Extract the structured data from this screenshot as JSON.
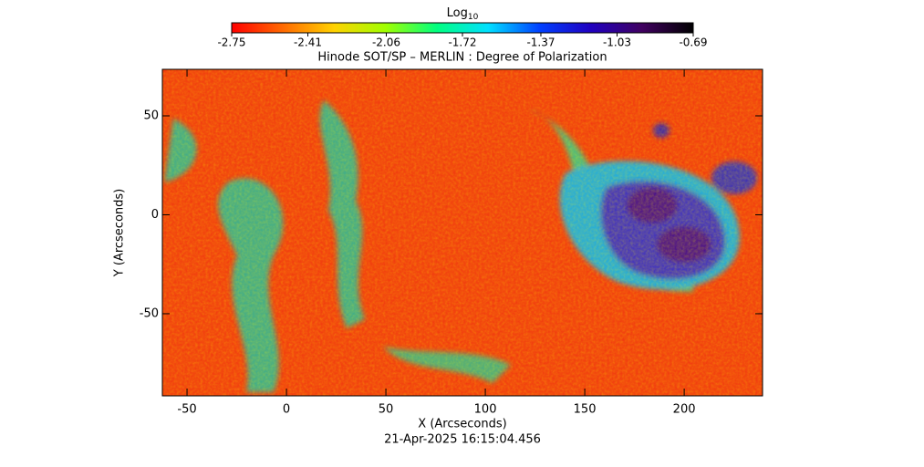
{
  "chart_data": {
    "type": "heatmap",
    "title": "Hinode SOT/SP – MERLIN : Degree of Polarization",
    "colorbar_label": "Log",
    "colorbar_label_subscript": "10",
    "clim": [
      -2.75,
      -0.69
    ],
    "cticks": [
      -2.75,
      -2.41,
      -2.06,
      -1.72,
      -1.37,
      -1.03,
      -0.69
    ],
    "colormap": [
      "#ff0000",
      "#ff6a00",
      "#ffd200",
      "#a0ff00",
      "#00ff80",
      "#00e0ff",
      "#0040ff",
      "#2000c0",
      "#400060",
      "#000000"
    ],
    "x_label": "X (Arcseconds)",
    "y_label": "Y (Arcseconds)",
    "xlim": [
      -62.4,
      239.4
    ],
    "ylim": [
      -91.5,
      73.5
    ],
    "xticks": [
      -50,
      0,
      50,
      100,
      150,
      200
    ],
    "yticks": [
      -50,
      0,
      50
    ],
    "date": "21-Apr-2025 16:15:04.456"
  }
}
